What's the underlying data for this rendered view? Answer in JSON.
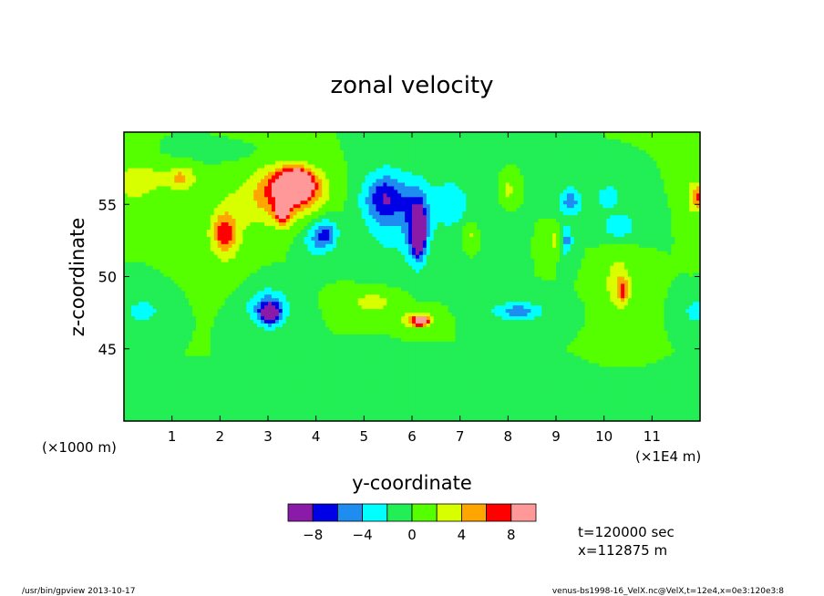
{
  "title": "zonal velocity",
  "footer": {
    "left": "/usr/bin/gpview  2013-10-17",
    "right": "venus-bs1998-16_VelX.nc@VelX,t=12e4,x=0e3:120e3:8"
  },
  "info": {
    "time": "t=120000 sec",
    "xpos": "x=112875 m"
  },
  "chart_data": {
    "type": "heatmap",
    "title": "zonal velocity",
    "xlabel": "y-coordinate",
    "ylabel": "z-coordinate",
    "x_factor_label": "(×1000 m)",
    "x_unit_label": "(×1E4 m)",
    "xlim": [
      0,
      12
    ],
    "ylim": [
      40,
      60
    ],
    "x_ticks": [
      "1",
      "2",
      "3",
      "4",
      "5",
      "6",
      "7",
      "8",
      "9",
      "10",
      "11"
    ],
    "y_ticks": [
      "45",
      "50",
      "55"
    ],
    "colorbar": {
      "levels": [
        -10,
        -8,
        -6,
        -4,
        -2,
        0,
        2,
        4,
        6,
        8,
        10
      ],
      "tick_labels": [
        "−8",
        "−4",
        "0",
        "4",
        "8"
      ],
      "tick_values": [
        -8,
        -4,
        0,
        4,
        8
      ],
      "colors": [
        "#8a1aa8",
        "#0000e6",
        "#1f8cf0",
        "#00ffff",
        "#22ee55",
        "#55ff00",
        "#d8ff00",
        "#ffa500",
        "#ff0000",
        "#ff9999"
      ]
    },
    "background_value": 0,
    "blobs": [
      {
        "y": 0.2,
        "z": 56.5,
        "ry": 0.45,
        "rz": 1.5,
        "v": 3
      },
      {
        "y": 0.6,
        "z": 56.8,
        "ry": 0.35,
        "rz": 1.0,
        "v": 1.5
      },
      {
        "y": 1.2,
        "z": 56.8,
        "ry": 0.3,
        "rz": 0.9,
        "v": 4.5
      },
      {
        "y": 2.1,
        "z": 53.0,
        "ry": 0.45,
        "rz": 2.5,
        "v": 3
      },
      {
        "y": 2.1,
        "z": 53.0,
        "ry": 0.2,
        "rz": 1.2,
        "v": 5
      },
      {
        "y": 3.15,
        "z": 55.5,
        "ry": 0.75,
        "rz": 2.0,
        "v": 5
      },
      {
        "y": 3.5,
        "z": 56.3,
        "ry": 0.45,
        "rz": 1.2,
        "v": 7
      },
      {
        "y": 3.6,
        "z": 56.5,
        "ry": 0.25,
        "rz": 0.8,
        "v": 9
      },
      {
        "y": 3.3,
        "z": 54.5,
        "ry": 0.15,
        "rz": 0.8,
        "v": 9
      },
      {
        "y": 3.8,
        "z": 56.0,
        "ry": 0.55,
        "rz": 1.5,
        "v": 3
      },
      {
        "y": 4.0,
        "z": 52.5,
        "ry": 0.35,
        "rz": 1.3,
        "v": -3
      },
      {
        "y": 4.2,
        "z": 53.0,
        "ry": 0.25,
        "rz": 1.0,
        "v": -5
      },
      {
        "y": 5.5,
        "z": 54.5,
        "ry": 0.55,
        "rz": 3.2,
        "v": -3.5
      },
      {
        "y": 5.45,
        "z": 55.5,
        "ry": 0.45,
        "rz": 1.5,
        "v": -5
      },
      {
        "y": 6.1,
        "z": 53.5,
        "ry": 0.25,
        "rz": 2.5,
        "v": -7
      },
      {
        "y": 6.15,
        "z": 53.0,
        "ry": 0.12,
        "rz": 1.5,
        "v": -9
      },
      {
        "y": 6.8,
        "z": 55.0,
        "ry": 0.55,
        "rz": 2.2,
        "v": -3
      },
      {
        "y": 3.0,
        "z": 47.8,
        "ry": 0.45,
        "rz": 1.4,
        "v": -5
      },
      {
        "y": 3.05,
        "z": 47.5,
        "ry": 0.2,
        "rz": 0.7,
        "v": -8
      },
      {
        "y": 0.4,
        "z": 47.6,
        "ry": 0.4,
        "rz": 0.9,
        "v": -3
      },
      {
        "y": 8.2,
        "z": 47.6,
        "ry": 0.55,
        "rz": 0.65,
        "v": -5
      },
      {
        "y": 9.3,
        "z": 55.2,
        "ry": 0.25,
        "rz": 1.0,
        "v": -5
      },
      {
        "y": 9.2,
        "z": 52.5,
        "ry": 0.15,
        "rz": 1.0,
        "v": -5
      },
      {
        "y": 10.3,
        "z": 53.5,
        "ry": 0.35,
        "rz": 0.9,
        "v": -4
      },
      {
        "y": 10.1,
        "z": 55.5,
        "ry": 0.25,
        "rz": 0.8,
        "v": -4
      },
      {
        "y": 11.9,
        "z": 47.6,
        "ry": 0.2,
        "rz": 0.7,
        "v": -4
      },
      {
        "y": 6.1,
        "z": 47.0,
        "ry": 0.3,
        "rz": 0.5,
        "v": 6
      },
      {
        "y": 6.2,
        "z": 46.9,
        "ry": 0.14,
        "rz": 0.3,
        "v": 9
      },
      {
        "y": 5.2,
        "z": 48.2,
        "ry": 0.5,
        "rz": 0.8,
        "v": 3
      },
      {
        "y": 7.2,
        "z": 53.0,
        "ry": 0.15,
        "rz": 0.9,
        "v": 3
      },
      {
        "y": 8.0,
        "z": 56.0,
        "ry": 0.12,
        "rz": 0.7,
        "v": 3
      },
      {
        "y": 9.0,
        "z": 52.5,
        "ry": 0.15,
        "rz": 0.9,
        "v": 3
      },
      {
        "y": 10.3,
        "z": 49.5,
        "ry": 0.3,
        "rz": 2.0,
        "v": 3.5
      },
      {
        "y": 10.4,
        "z": 49.0,
        "ry": 0.1,
        "rz": 0.8,
        "v": 5
      },
      {
        "y": 11.85,
        "z": 55.5,
        "ry": 0.15,
        "rz": 1.5,
        "v": 3
      },
      {
        "y": 11.95,
        "z": 55.5,
        "ry": 0.08,
        "rz": 0.8,
        "v": 5
      },
      {
        "y": 4.5,
        "z": 42.8,
        "ry": 1.5,
        "rz": 0.6,
        "v": -0.7
      },
      {
        "y": 8.5,
        "z": 42.0,
        "ry": 1.5,
        "rz": 0.7,
        "v": -0.7
      },
      {
        "y": 2.0,
        "z": 58.5,
        "ry": 1.0,
        "rz": 0.6,
        "v": -0.6
      }
    ]
  }
}
